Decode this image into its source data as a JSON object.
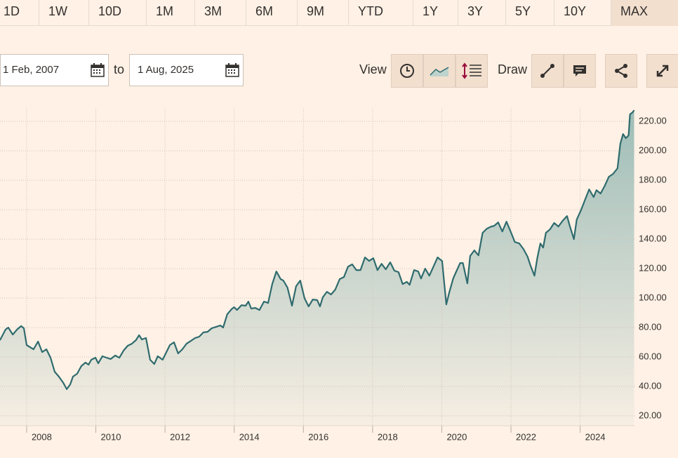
{
  "toolbar": {
    "ranges": [
      "1D",
      "1W",
      "10D",
      "1M",
      "3M",
      "6M",
      "9M",
      "YTD",
      "1Y",
      "3Y",
      "5Y",
      "10Y",
      "MAX"
    ],
    "active_range": 12,
    "from_date": "1 Feb, 2007",
    "to_label": "to",
    "to_date": "1 Aug, 2025",
    "view_label": "View",
    "draw_label": "Draw"
  },
  "chart_data": {
    "type": "area",
    "color": "#2f6b6e",
    "x": [
      2007.23,
      2007.39,
      2007.47,
      2007.6,
      2007.72,
      2007.84,
      2007.92,
      2008.0,
      2008.2,
      2008.33,
      2008.45,
      2008.57,
      2008.69,
      2008.81,
      2008.93,
      2009.06,
      2009.16,
      2009.26,
      2009.34,
      2009.46,
      2009.58,
      2009.7,
      2009.79,
      2009.87,
      2009.99,
      2010.07,
      2010.19,
      2010.31,
      2010.43,
      2010.56,
      2010.68,
      2010.8,
      2010.92,
      2011.04,
      2011.16,
      2011.25,
      2011.33,
      2011.45,
      2011.57,
      2011.69,
      2011.79,
      2011.93,
      2012.04,
      2012.14,
      2012.26,
      2012.38,
      2012.5,
      2012.62,
      2012.75,
      2012.87,
      2012.99,
      2013.11,
      2013.23,
      2013.35,
      2013.48,
      2013.6,
      2013.68,
      2013.8,
      2013.92,
      2014.0,
      2014.08,
      2014.21,
      2014.33,
      2014.41,
      2014.49,
      2014.61,
      2014.73,
      2014.86,
      2014.98,
      2015.1,
      2015.22,
      2015.34,
      2015.42,
      2015.54,
      2015.67,
      2015.79,
      2015.91,
      2016.03,
      2016.15,
      2016.27,
      2016.4,
      2016.48,
      2016.56,
      2016.68,
      2016.8,
      2016.92,
      2017.05,
      2017.17,
      2017.29,
      2017.41,
      2017.53,
      2017.65,
      2017.78,
      2017.9,
      2018.02,
      2018.14,
      2018.26,
      2018.38,
      2018.51,
      2018.63,
      2018.75,
      2018.87,
      2018.99,
      2019.07,
      2019.2,
      2019.32,
      2019.4,
      2019.52,
      2019.64,
      2019.76,
      2019.88,
      2020.01,
      2020.13,
      2020.21,
      2020.33,
      2020.41,
      2020.53,
      2020.61,
      2020.74,
      2020.82,
      2020.94,
      2021.06,
      2021.18,
      2021.3,
      2021.43,
      2021.51,
      2021.63,
      2021.75,
      2021.87,
      2021.99,
      2022.11,
      2022.24,
      2022.36,
      2022.48,
      2022.56,
      2022.68,
      2022.76,
      2022.85,
      2022.93,
      2023.01,
      2023.13,
      2023.25,
      2023.37,
      2023.49,
      2023.62,
      2023.7,
      2023.82,
      2023.9,
      2024.02,
      2024.14,
      2024.26,
      2024.39,
      2024.47,
      2024.59,
      2024.71,
      2024.83,
      2024.95,
      2025.08,
      2025.16,
      2025.24,
      2025.32,
      2025.4,
      2025.44,
      2025.52,
      2025.56
    ],
    "values": [
      71.4,
      78.6,
      80.0,
      75.2,
      78.6,
      81.0,
      79.5,
      68.1,
      65.2,
      70.5,
      63.3,
      65.2,
      59.5,
      50.0,
      46.7,
      42.4,
      38.1,
      41.4,
      46.7,
      48.6,
      53.8,
      56.2,
      54.8,
      58.1,
      59.5,
      55.7,
      60.5,
      59.5,
      58.6,
      61.0,
      59.5,
      64.3,
      67.6,
      69.0,
      71.4,
      74.8,
      71.9,
      72.9,
      58.1,
      55.2,
      60.5,
      58.1,
      63.3,
      68.1,
      70.0,
      62.4,
      65.2,
      69.0,
      71.0,
      72.9,
      73.8,
      76.7,
      77.1,
      79.5,
      80.5,
      81.4,
      80.0,
      89.0,
      92.4,
      93.8,
      91.9,
      95.2,
      94.8,
      97.6,
      92.9,
      93.3,
      91.9,
      97.6,
      96.7,
      109.5,
      118.1,
      112.9,
      111.9,
      107.1,
      94.8,
      108.1,
      111.9,
      100.0,
      94.3,
      99.0,
      98.6,
      94.3,
      100.5,
      104.3,
      102.4,
      105.7,
      112.9,
      114.3,
      121.4,
      122.9,
      119.0,
      119.0,
      127.6,
      125.2,
      127.1,
      119.0,
      123.3,
      119.5,
      124.3,
      118.6,
      117.6,
      109.5,
      111.0,
      109.0,
      119.0,
      118.1,
      113.3,
      120.0,
      115.2,
      121.4,
      127.6,
      125.2,
      95.7,
      103.3,
      113.3,
      117.6,
      123.8,
      123.8,
      110.0,
      128.6,
      132.4,
      129.0,
      144.3,
      147.1,
      148.6,
      149.0,
      151.4,
      145.2,
      151.9,
      145.2,
      138.1,
      137.1,
      133.3,
      128.1,
      122.4,
      115.2,
      127.1,
      137.1,
      134.3,
      144.3,
      146.7,
      151.0,
      148.6,
      152.4,
      155.7,
      149.0,
      140.0,
      153.3,
      159.5,
      166.7,
      173.8,
      168.6,
      173.3,
      171.0,
      176.2,
      182.4,
      184.3,
      188.1,
      204.8,
      211.4,
      208.6,
      210.5,
      224.8,
      226.2,
      227.6
    ],
    "xlim": [
      2007.23,
      2025.57
    ],
    "xticks": [
      2008,
      2010,
      2012,
      2014,
      2016,
      2018,
      2020,
      2022,
      2024
    ],
    "ylim": [
      13.3,
      228.6
    ],
    "yticks": [
      {
        "value": 20,
        "label": "20.00"
      },
      {
        "value": 40,
        "label": "40.00"
      },
      {
        "value": 60,
        "label": "60.00"
      },
      {
        "value": 80,
        "label": "80.00"
      },
      {
        "value": 100,
        "label": "100.00"
      },
      {
        "value": 120,
        "label": "120.00"
      },
      {
        "value": 140,
        "label": "140.00"
      },
      {
        "value": 160,
        "label": "160.00"
      },
      {
        "value": 180,
        "label": "180.00"
      },
      {
        "value": 200,
        "label": "200.00"
      },
      {
        "value": 220,
        "label": "220.00"
      }
    ],
    "grid": true
  }
}
